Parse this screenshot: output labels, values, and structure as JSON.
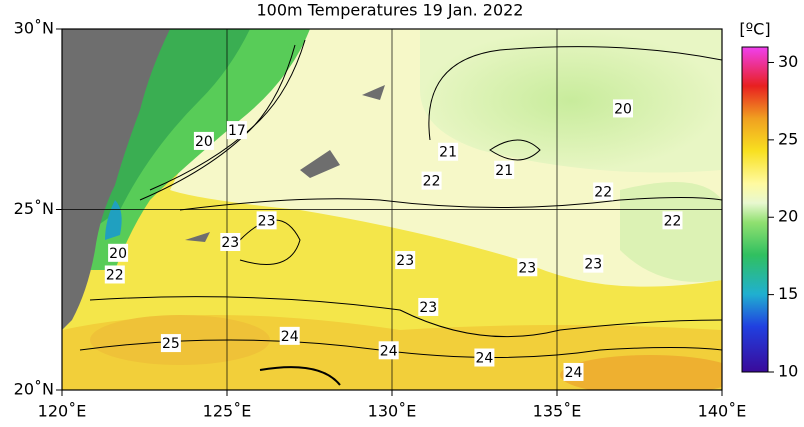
{
  "title": "100m Temperatures  19 Jan. 2022",
  "map": {
    "lon_range": [
      120,
      140
    ],
    "lat_range": [
      20,
      30
    ],
    "lon_ticks": [
      {
        "value": 120,
        "label": "120˚E"
      },
      {
        "value": 125,
        "label": "125˚E"
      },
      {
        "value": 130,
        "label": "130˚E"
      },
      {
        "value": 135,
        "label": "135˚E"
      },
      {
        "value": 140,
        "label": "140˚E"
      }
    ],
    "lat_ticks": [
      {
        "value": 20,
        "label": "20˚N"
      },
      {
        "value": 25,
        "label": "25˚N"
      },
      {
        "value": 30,
        "label": "30˚N"
      }
    ],
    "contour_labels": [
      {
        "value": 20,
        "lon": 137.0,
        "lat": 27.8
      },
      {
        "value": 21,
        "lon": 131.7,
        "lat": 26.6
      },
      {
        "value": 21,
        "lon": 133.4,
        "lat": 26.1
      },
      {
        "value": 22,
        "lon": 131.2,
        "lat": 25.8
      },
      {
        "value": 22,
        "lon": 136.4,
        "lat": 25.5
      },
      {
        "value": 22,
        "lon": 138.5,
        "lat": 24.7
      },
      {
        "value": 20,
        "lon": 124.3,
        "lat": 26.9
      },
      {
        "value": 17,
        "lon": 125.3,
        "lat": 27.2
      },
      {
        "value": 23,
        "lon": 126.2,
        "lat": 24.7
      },
      {
        "value": 23,
        "lon": 125.1,
        "lat": 24.1
      },
      {
        "value": 20,
        "lon": 121.7,
        "lat": 23.8
      },
      {
        "value": 22,
        "lon": 121.6,
        "lat": 23.2
      },
      {
        "value": 23,
        "lon": 130.4,
        "lat": 23.6
      },
      {
        "value": 23,
        "lon": 134.1,
        "lat": 23.4
      },
      {
        "value": 23,
        "lon": 136.1,
        "lat": 23.5
      },
      {
        "value": 23,
        "lon": 131.1,
        "lat": 22.3
      },
      {
        "value": 24,
        "lon": 126.9,
        "lat": 21.5
      },
      {
        "value": 25,
        "lon": 123.3,
        "lat": 21.3
      },
      {
        "value": 24,
        "lon": 129.9,
        "lat": 21.1
      },
      {
        "value": 24,
        "lon": 132.8,
        "lat": 20.9
      },
      {
        "value": 24,
        "lon": 135.5,
        "lat": 20.5
      }
    ]
  },
  "colorbar": {
    "unit": "[ºC]",
    "range": [
      10,
      31
    ],
    "ticks": [
      10,
      15,
      20,
      25,
      30
    ]
  }
}
